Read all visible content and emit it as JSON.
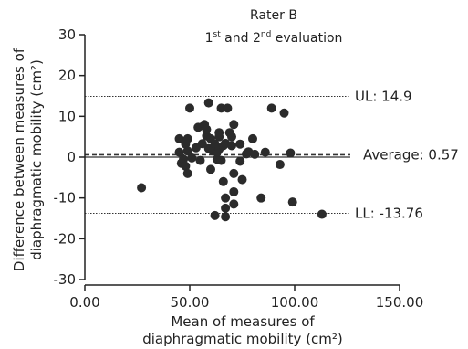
{
  "chart_data": {
    "type": "scatter",
    "title": "Rater B",
    "subtitle": {
      "pre": "1",
      "sup1": "st",
      "mid": " and 2",
      "sup2": "nd",
      "post": " evaluation"
    },
    "xlabel": [
      "Mean of measures of",
      "diaphragmatic mobility (cm²)"
    ],
    "ylabel": [
      "Difference between measures of",
      "diaphragmatic mobility (cm²)"
    ],
    "xlim": [
      0,
      150
    ],
    "ylim": [
      -30,
      30
    ],
    "xticks": [
      {
        "value": 0,
        "label": "0.00"
      },
      {
        "value": 50,
        "label": "50.00"
      },
      {
        "value": 100,
        "label": "100.00"
      },
      {
        "value": 150,
        "label": "150.00"
      }
    ],
    "yticks": [
      {
        "value": 30,
        "label": "30"
      },
      {
        "value": 20,
        "label": "20"
      },
      {
        "value": 10,
        "label": "10"
      },
      {
        "value": 0,
        "label": "0"
      },
      {
        "value": -10,
        "label": "-10"
      },
      {
        "value": -20,
        "label": "-20"
      },
      {
        "value": -30,
        "label": "-30"
      }
    ],
    "reference_lines": [
      {
        "name": "UL",
        "value": 14.9,
        "label": "UL: 14.9",
        "style": "dotted"
      },
      {
        "name": "Average",
        "value": 0.57,
        "label": "Average: 0.57",
        "style": "dashed"
      },
      {
        "name": "LL",
        "value": -13.76,
        "label": "LL: -13.76",
        "style": "dotted"
      }
    ],
    "zero_line": 0,
    "points": [
      [
        27,
        -7.5
      ],
      [
        45,
        1.2
      ],
      [
        45,
        4.5
      ],
      [
        46,
        -1.5
      ],
      [
        47,
        -0.5
      ],
      [
        48,
        3.2
      ],
      [
        48,
        -2.2
      ],
      [
        49,
        -4
      ],
      [
        49,
        4.5
      ],
      [
        49,
        1.5
      ],
      [
        50,
        12
      ],
      [
        51,
        -0.2
      ],
      [
        53,
        2.3
      ],
      [
        54,
        7.3
      ],
      [
        55,
        -0.8
      ],
      [
        56,
        3.3
      ],
      [
        57,
        8
      ],
      [
        58,
        5.2
      ],
      [
        58,
        6.8
      ],
      [
        59,
        13.3
      ],
      [
        59,
        2.1
      ],
      [
        60,
        4.5
      ],
      [
        60,
        -3
      ],
      [
        61,
        1.5
      ],
      [
        62,
        3.2
      ],
      [
        62,
        -14.3
      ],
      [
        63,
        -0.5
      ],
      [
        63,
        1.2
      ],
      [
        64,
        2
      ],
      [
        64,
        6
      ],
      [
        64,
        5
      ],
      [
        65,
        12
      ],
      [
        65,
        -0.8
      ],
      [
        66,
        2.8
      ],
      [
        66,
        -6
      ],
      [
        67,
        -10
      ],
      [
        67,
        3.4
      ],
      [
        67,
        -12.5
      ],
      [
        67,
        -14.6
      ],
      [
        68,
        12
      ],
      [
        69,
        6
      ],
      [
        70,
        5
      ],
      [
        70,
        2.8
      ],
      [
        71,
        8
      ],
      [
        71,
        -4
      ],
      [
        71,
        -8.5
      ],
      [
        71,
        -11.5
      ],
      [
        74,
        3.2
      ],
      [
        74,
        -1
      ],
      [
        75,
        -5.5
      ],
      [
        77,
        0.8
      ],
      [
        78,
        1.3
      ],
      [
        80,
        4.5
      ],
      [
        81,
        0.7
      ],
      [
        84,
        -10
      ],
      [
        86,
        1.2
      ],
      [
        89,
        12
      ],
      [
        93,
        -1.8
      ],
      [
        95,
        10.8
      ],
      [
        98,
        1
      ],
      [
        99,
        -11
      ],
      [
        113,
        -14
      ]
    ]
  }
}
